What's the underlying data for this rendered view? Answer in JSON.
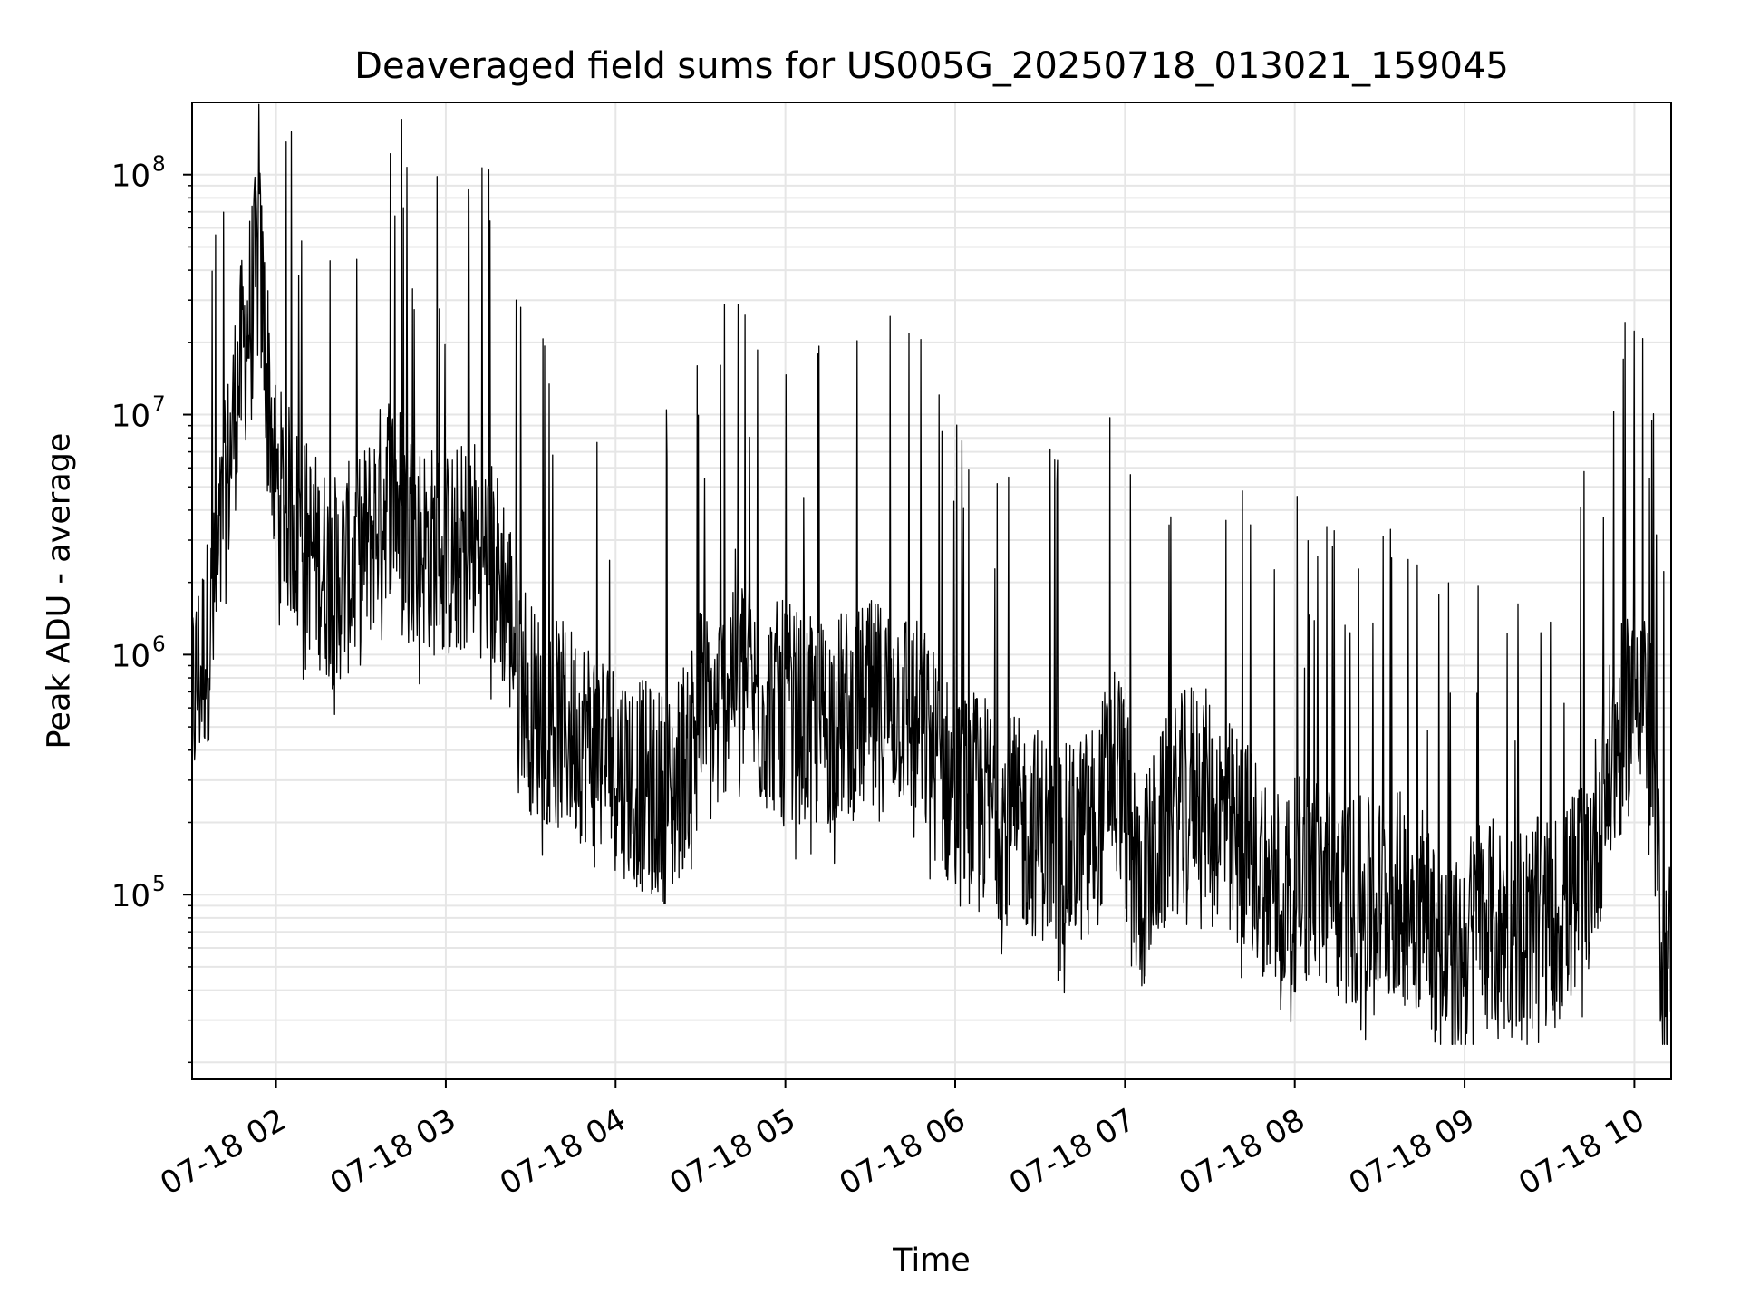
{
  "chart_data": {
    "type": "line",
    "title": "Deaveraged field sums for US005G_20250718_013021_159045",
    "xlabel": "Time",
    "ylabel": "Peak ADU - average",
    "yscale": "log",
    "grid": true,
    "line_color": "#000000",
    "xlim": [
      "2025-07-18 01:30:21",
      "2025-07-18 10:13:00"
    ],
    "ylim": [
      17000,
      200000000
    ],
    "x_ticks": [
      {
        "label": "07-18 02",
        "value": "2025-07-18 02:00"
      },
      {
        "label": "07-18 03",
        "value": "2025-07-18 03:00"
      },
      {
        "label": "07-18 04",
        "value": "2025-07-18 04:00"
      },
      {
        "label": "07-18 05",
        "value": "2025-07-18 05:00"
      },
      {
        "label": "07-18 06",
        "value": "2025-07-18 06:00"
      },
      {
        "label": "07-18 07",
        "value": "2025-07-18 07:00"
      },
      {
        "label": "07-18 08",
        "value": "2025-07-18 08:00"
      },
      {
        "label": "07-18 09",
        "value": "2025-07-18 09:00"
      },
      {
        "label": "07-18 10",
        "value": "2025-07-18 10:00"
      }
    ],
    "y_ticks": [
      {
        "base": "10",
        "exp": "5",
        "value": 100000
      },
      {
        "base": "10",
        "exp": "6",
        "value": 1000000
      },
      {
        "base": "10",
        "exp": "7",
        "value": 10000000
      },
      {
        "base": "10",
        "exp": "8",
        "value": 100000000
      }
    ],
    "series": [
      {
        "x": [
          "2025-07-18 01:30",
          "2025-07-18 01:38",
          "2025-07-18 01:46",
          "2025-07-18 01:54",
          "2025-07-18 02:00",
          "2025-07-18 02:10",
          "2025-07-18 02:20",
          "2025-07-18 02:30",
          "2025-07-18 02:40",
          "2025-07-18 02:50",
          "2025-07-18 03:00",
          "2025-07-18 03:10",
          "2025-07-18 03:20",
          "2025-07-18 03:30",
          "2025-07-18 03:40",
          "2025-07-18 03:50",
          "2025-07-18 04:00",
          "2025-07-18 04:10",
          "2025-07-18 04:20",
          "2025-07-18 04:30",
          "2025-07-18 04:35",
          "2025-07-18 04:42",
          "2025-07-18 04:50",
          "2025-07-18 05:00",
          "2025-07-18 05:10",
          "2025-07-18 05:20",
          "2025-07-18 05:30",
          "2025-07-18 05:40",
          "2025-07-18 05:50",
          "2025-07-18 06:00",
          "2025-07-18 06:10",
          "2025-07-18 06:20",
          "2025-07-18 06:30",
          "2025-07-18 06:40",
          "2025-07-18 06:50",
          "2025-07-18 06:57",
          "2025-07-18 07:05",
          "2025-07-18 07:15",
          "2025-07-18 07:25",
          "2025-07-18 07:35",
          "2025-07-18 07:45",
          "2025-07-18 07:55",
          "2025-07-18 08:05",
          "2025-07-18 08:15",
          "2025-07-18 08:25",
          "2025-07-18 08:35",
          "2025-07-18 08:45",
          "2025-07-18 08:55",
          "2025-07-18 09:05",
          "2025-07-18 09:15",
          "2025-07-18 09:25",
          "2025-07-18 09:35",
          "2025-07-18 09:45",
          "2025-07-18 09:52",
          "2025-07-18 09:58",
          "2025-07-18 10:02",
          "2025-07-18 10:06",
          "2025-07-18 10:10",
          "2025-07-18 10:13"
        ],
        "y": [
          600000,
          1500000,
          12000000,
          45000000,
          5000000,
          3000000,
          2000000,
          2500000,
          5000000,
          3000000,
          2500000,
          3000000,
          2000000,
          600000,
          500000,
          450000,
          350000,
          280000,
          250000,
          600000,
          500000,
          1000000,
          600000,
          600000,
          500000,
          550000,
          600000,
          650000,
          450000,
          250000,
          250000,
          200000,
          180000,
          150000,
          200000,
          400000,
          100000,
          200000,
          300000,
          200000,
          150000,
          100000,
          120000,
          100000,
          90000,
          100000,
          90000,
          45000,
          80000,
          70000,
          75000,
          80000,
          150000,
          350000,
          600000,
          950000,
          400000,
          50000,
          55000
        ]
      }
    ]
  }
}
